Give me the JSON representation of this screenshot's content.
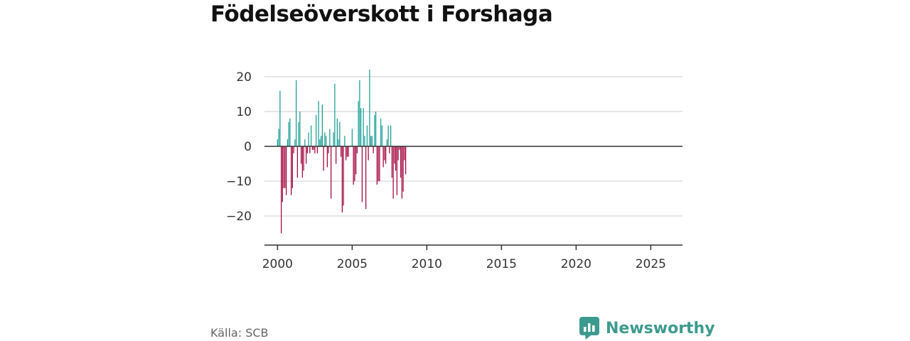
{
  "chart_data": {
    "type": "bar",
    "title": "Födelseöverskott i Forshaga",
    "xlabel": "",
    "ylabel": "",
    "ylim": [
      -28,
      24
    ],
    "yticks": [
      20,
      10,
      0,
      -10,
      -20
    ],
    "ytick_labels": [
      "20",
      "10",
      "0",
      "−10",
      "−20"
    ],
    "xlim": [
      1999.125,
      2027.125
    ],
    "xticks": [
      2000,
      2005,
      2010,
      2015,
      2020,
      2025
    ],
    "xtick_labels": [
      "2000",
      "2005",
      "2010",
      "2015",
      "2020",
      "2025"
    ],
    "period": "monthly",
    "start": "2000-01",
    "positive_color": "#1a9e96",
    "negative_color": "#a3063f",
    "values": [
      2,
      5,
      16,
      -25,
      -16,
      -12,
      -12,
      -14,
      2,
      7,
      8,
      -14,
      -12,
      -2,
      2,
      19,
      -9,
      7,
      10,
      -5,
      -9,
      -7,
      2,
      -5,
      -2,
      4,
      -2,
      6,
      -1,
      -1,
      -2,
      9,
      -2,
      13,
      2,
      3,
      12,
      -7,
      4,
      3,
      -6,
      -2,
      5,
      -15,
      0,
      4,
      18,
      -5,
      8,
      2,
      7,
      -3,
      -19,
      -17,
      3,
      -4,
      -3,
      -3,
      0,
      0,
      5,
      -11,
      -10,
      -8,
      -2,
      13,
      19,
      11,
      -16,
      11,
      3,
      -18,
      6,
      -4,
      22,
      3,
      3,
      -2,
      9,
      10,
      -11,
      -10,
      -10,
      8,
      6,
      -6,
      -4,
      -5,
      2,
      6,
      -2,
      6,
      -9,
      -15,
      -5,
      -7,
      -14,
      -4,
      -1,
      -9,
      -15,
      -13,
      -4,
      -8
    ]
  },
  "source": {
    "label": "Källa: SCB"
  },
  "brand": {
    "name": "Newsworthy",
    "color": "#3d9a8e"
  }
}
